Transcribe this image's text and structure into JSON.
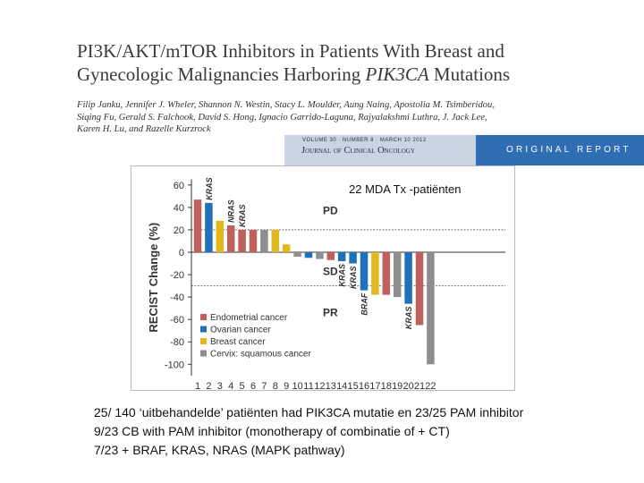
{
  "paper": {
    "title_line1": "PI3K/AKT/mTOR Inhibitors in Patients With Breast and",
    "title_line2_a": "Gynecologic Malignancies Harboring ",
    "title_line2_b": "PIK3CA",
    "title_line2_c": " Mutations",
    "authors_line1": "Filip Janku, Jennifer J. Wheler, Shannon N. Westin, Stacy L. Moulder, Aung Naing, Apostolia M. Tsimberidou,",
    "authors_line2": "Siqing Fu, Gerald S. Falchook, David S. Hong, Ignacio Garrido-Laguna, Rajyalakshmi Luthra, J. Jack Lee,",
    "authors_line3": "Karen H. Lu, and Razelle Kurzrock"
  },
  "journal": {
    "meta": "VOLUME 30 · NUMBER 8 · MARCH 10 2012",
    "name": "Journal of Clinical Oncology",
    "report_label": "ORIGINAL REPORT"
  },
  "overlay_label": "22 MDA Tx -patiënten",
  "colors": {
    "endometrial": "#c0605c",
    "ovarian": "#1f72b8",
    "breast": "#e2b91d",
    "cervix": "#8e8e8e"
  },
  "chart_data": {
    "type": "bar",
    "ylabel": "RECIST Change (%)",
    "ylim": [
      -110,
      65
    ],
    "yticks": [
      60,
      40,
      20,
      0,
      -20,
      -40,
      -60,
      -80,
      -100
    ],
    "categories": [
      "1",
      "2",
      "3",
      "4",
      "5",
      "6",
      "7",
      "8",
      "9",
      "10",
      "11",
      "12",
      "13",
      "14",
      "15",
      "16",
      "17",
      "18",
      "19",
      "20",
      "21",
      "22"
    ],
    "values": [
      47,
      44,
      28,
      24,
      20,
      20,
      20,
      20,
      7,
      -4,
      -5,
      -6,
      -7,
      -8,
      -10,
      -34,
      -38,
      -38,
      -40,
      -46,
      -65,
      -100
    ],
    "cancer_types": [
      "endometrial",
      "ovarian",
      "breast",
      "endometrial",
      "endometrial",
      "endometrial",
      "cervix",
      "breast",
      "breast",
      "cervix",
      "ovarian",
      "cervix",
      "endometrial",
      "ovarian",
      "ovarian",
      "ovarian",
      "breast",
      "endometrial",
      "cervix",
      "ovarian",
      "endometrial",
      "cervix"
    ],
    "bar_annotations": [
      {
        "bar": "2",
        "text": "KRAS"
      },
      {
        "bar": "4",
        "text": "NRAS"
      },
      {
        "bar": "5",
        "text": "KRAS"
      },
      {
        "bar": "14",
        "text": "KRAS"
      },
      {
        "bar": "15",
        "text": "KRAS"
      },
      {
        "bar": "16",
        "text": "BRAF"
      },
      {
        "bar": "20",
        "text": "KRAS"
      }
    ],
    "thresholds": [
      {
        "label": "PD",
        "value": 20
      },
      {
        "label": "PR",
        "value": -30
      }
    ],
    "region_labels": [
      {
        "text": "PD",
        "value": 37
      },
      {
        "text": "SD",
        "value": -17
      },
      {
        "text": "PR",
        "value": -54
      }
    ],
    "legend": [
      {
        "label": "Endometrial cancer",
        "type": "endometrial"
      },
      {
        "label": "Ovarian cancer",
        "type": "ovarian"
      },
      {
        "label": "Breast cancer",
        "type": "breast"
      },
      {
        "label": "Cervix: squamous cancer",
        "type": "cervix"
      }
    ],
    "legend_position": "bottom-left"
  },
  "notes": {
    "line1": "25/ 140 ‘uitbehandelde’ patiënten had PIK3CA mutatie en 23/25 PAM inhibitor",
    "line2": "9/23 CB with PAM inhibitor (monotherapy of combinatie of + CT)",
    "line3": "7/23 + BRAF, KRAS, NRAS (MAPK pathway)"
  }
}
